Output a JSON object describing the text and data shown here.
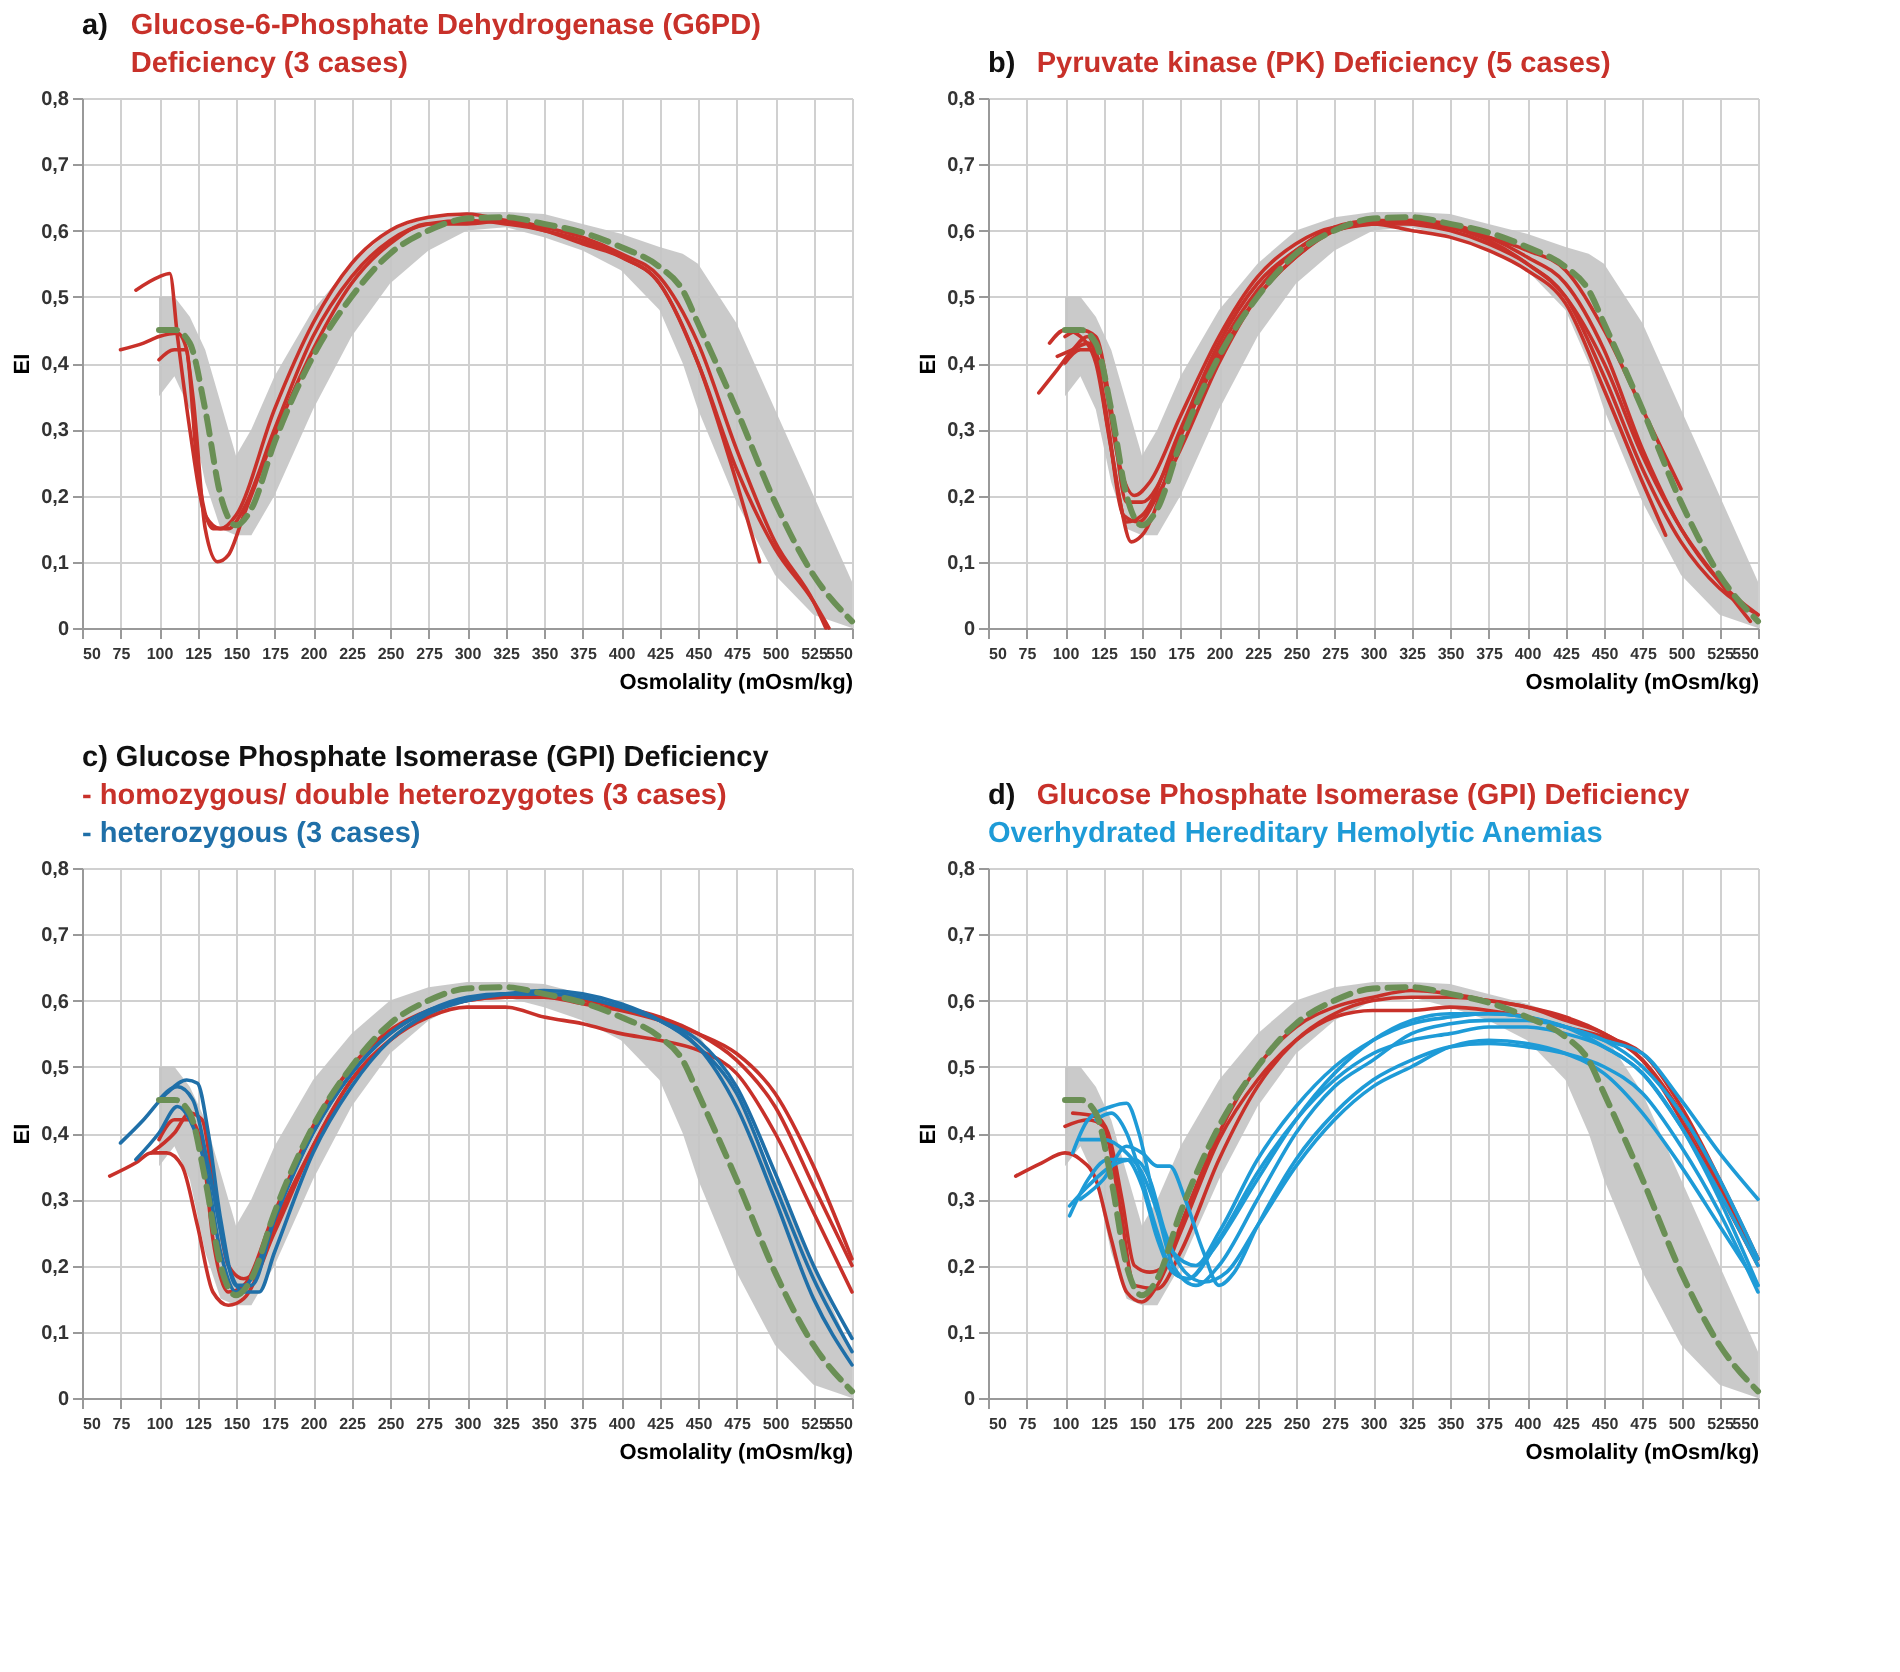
{
  "chart_data": [
    {
      "type": "line",
      "title": "a)",
      "xlabel": "Osmolality (mOsm/kg)",
      "ylabel": "EI",
      "xlim": [
        50,
        550
      ],
      "xticks": [
        50,
        75,
        100,
        125,
        150,
        175,
        200,
        225,
        250,
        275,
        300,
        325,
        350,
        375,
        400,
        425,
        450,
        475,
        500,
        525,
        550
      ],
      "ylim": [
        0,
        0.8
      ],
      "yticks": [
        {
          "value": 0,
          "label": "0"
        },
        {
          "value": 0.1,
          "label": "0,1"
        },
        {
          "value": 0.2,
          "label": "0,2"
        },
        {
          "value": 0.3,
          "label": "0,3"
        },
        {
          "value": 0.4,
          "label": "0,4"
        },
        {
          "value": 0.5,
          "label": "0,5"
        },
        {
          "value": 0.6,
          "label": "0,6"
        },
        {
          "value": 0.7,
          "label": "0,7"
        },
        {
          "value": 0.8,
          "label": "0,8"
        }
      ],
      "grid": true,
      "legend": "top",
      "series": [
        {
          "color": "#6a8f55",
          "line_style": "dashed",
          "x": [
            100,
            110,
            120,
            130,
            140,
            150,
            160,
            175,
            200,
            225,
            250,
            275,
            300,
            325,
            350,
            375,
            400,
            425,
            440,
            450,
            475,
            500,
            525,
            550
          ],
          "values": [
            0.45,
            0.45,
            0.43,
            0.33,
            0.2,
            0.155,
            0.18,
            0.28,
            0.41,
            0.5,
            0.565,
            0.6,
            0.618,
            0.62,
            0.61,
            0.597,
            0.575,
            0.545,
            0.51,
            0.46,
            0.33,
            0.19,
            0.08,
            0.01
          ],
          "lower": [
            0.35,
            0.38,
            0.33,
            0.22,
            0.15,
            0.14,
            0.14,
            0.2,
            0.33,
            0.44,
            0.52,
            0.57,
            0.6,
            0.605,
            0.59,
            0.57,
            0.54,
            0.48,
            0.4,
            0.33,
            0.19,
            0.08,
            0.02,
            0.0
          ],
          "upper": [
            0.5,
            0.5,
            0.47,
            0.42,
            0.34,
            0.26,
            0.3,
            0.38,
            0.48,
            0.55,
            0.6,
            0.62,
            0.628,
            0.628,
            0.625,
            0.61,
            0.595,
            0.575,
            0.565,
            0.55,
            0.46,
            0.33,
            0.2,
            0.07
          ]
        },
        {
          "name": "Glucose-6-Phosphate Dehydrogenase (G6PD) Deficiency (3 cases)",
          "color": "#c8312a",
          "x": [
            85,
            100,
            107,
            112,
            120,
            130,
            140,
            150,
            175,
            200,
            225,
            250,
            275,
            300,
            325,
            350,
            375,
            400,
            425,
            450,
            475,
            490
          ],
          "values": [
            0.51,
            0.53,
            0.535,
            0.44,
            0.3,
            0.17,
            0.15,
            0.17,
            0.33,
            0.46,
            0.55,
            0.6,
            0.62,
            0.625,
            0.615,
            0.6,
            0.585,
            0.56,
            0.52,
            0.4,
            0.22,
            0.1
          ]
        },
        {
          "color": "#c8312a",
          "x": [
            75,
            90,
            100,
            112,
            118,
            125,
            135,
            145,
            155,
            175,
            200,
            225,
            250,
            275,
            300,
            325,
            350,
            375,
            400,
            425,
            450,
            475,
            500,
            525,
            535
          ],
          "values": [
            0.42,
            0.43,
            0.44,
            0.445,
            0.42,
            0.24,
            0.15,
            0.15,
            0.18,
            0.3,
            0.44,
            0.53,
            0.585,
            0.61,
            0.615,
            0.61,
            0.6,
            0.58,
            0.56,
            0.52,
            0.4,
            0.24,
            0.12,
            0.04,
            0.0
          ]
        },
        {
          "color": "#c8312a",
          "x": [
            100,
            110,
            117,
            122,
            130,
            138,
            145,
            155,
            175,
            200,
            225,
            250,
            275,
            300,
            325,
            350,
            375,
            400,
            425,
            450,
            475,
            500,
            525,
            533
          ],
          "values": [
            0.405,
            0.42,
            0.42,
            0.35,
            0.15,
            0.1,
            0.11,
            0.17,
            0.29,
            0.42,
            0.52,
            0.58,
            0.61,
            0.61,
            0.615,
            0.605,
            0.59,
            0.565,
            0.53,
            0.43,
            0.27,
            0.13,
            0.04,
            0.0
          ]
        }
      ]
    },
    {
      "type": "line",
      "title": "b)",
      "xlabel": "Osmolality (mOsm/kg)",
      "ylabel": "EI",
      "xlim": [
        50,
        550
      ],
      "xticks": [
        50,
        75,
        100,
        125,
        150,
        175,
        200,
        225,
        250,
        275,
        300,
        325,
        350,
        375,
        400,
        425,
        450,
        475,
        500,
        525,
        550
      ],
      "ylim": [
        0,
        0.8
      ],
      "yticks": [
        {
          "value": 0,
          "label": "0"
        },
        {
          "value": 0.1,
          "label": "0,1"
        },
        {
          "value": 0.2,
          "label": "0,2"
        },
        {
          "value": 0.3,
          "label": "0,3"
        },
        {
          "value": 0.4,
          "label": "0,4"
        },
        {
          "value": 0.5,
          "label": "0,5"
        },
        {
          "value": 0.6,
          "label": "0,6"
        },
        {
          "value": 0.7,
          "label": "0,7"
        },
        {
          "value": 0.8,
          "label": "0,8"
        }
      ],
      "grid": true,
      "legend": "top",
      "series": [
        {
          "color": "#6a8f55",
          "line_style": "dashed",
          "x": [
            100,
            110,
            120,
            130,
            140,
            150,
            160,
            175,
            200,
            225,
            250,
            275,
            300,
            325,
            350,
            375,
            400,
            425,
            440,
            450,
            475,
            500,
            525,
            550
          ],
          "values": [
            0.45,
            0.45,
            0.43,
            0.33,
            0.2,
            0.155,
            0.18,
            0.28,
            0.41,
            0.5,
            0.565,
            0.6,
            0.618,
            0.62,
            0.61,
            0.597,
            0.575,
            0.545,
            0.51,
            0.46,
            0.33,
            0.19,
            0.08,
            0.01
          ],
          "lower": [
            0.35,
            0.38,
            0.33,
            0.22,
            0.15,
            0.14,
            0.14,
            0.2,
            0.33,
            0.44,
            0.52,
            0.57,
            0.6,
            0.605,
            0.59,
            0.57,
            0.54,
            0.48,
            0.4,
            0.33,
            0.19,
            0.08,
            0.02,
            0.0
          ],
          "upper": [
            0.5,
            0.5,
            0.47,
            0.42,
            0.34,
            0.26,
            0.3,
            0.38,
            0.48,
            0.55,
            0.6,
            0.62,
            0.628,
            0.628,
            0.625,
            0.61,
            0.595,
            0.575,
            0.565,
            0.55,
            0.46,
            0.33,
            0.2,
            0.07
          ]
        },
        {
          "name": "Pyruvate kinase (PK) Deficiency (5 cases)",
          "color": "#c8312a",
          "x": [
            83,
            95,
            105,
            115,
            125,
            135,
            143,
            150,
            175,
            200,
            225,
            250,
            275,
            300,
            325,
            350,
            375,
            400,
            425,
            450,
            475,
            500,
            525,
            550
          ],
          "values": [
            0.355,
            0.39,
            0.42,
            0.44,
            0.35,
            0.2,
            0.13,
            0.14,
            0.29,
            0.41,
            0.5,
            0.56,
            0.6,
            0.615,
            0.61,
            0.6,
            0.58,
            0.55,
            0.5,
            0.38,
            0.24,
            0.13,
            0.06,
            0.02
          ]
        },
        {
          "color": "#c8312a",
          "x": [
            90,
            100,
            110,
            120,
            130,
            140,
            150,
            175,
            200,
            225,
            250,
            275,
            300,
            325,
            350,
            375,
            400,
            425,
            450,
            475,
            500,
            525,
            550
          ],
          "values": [
            0.43,
            0.45,
            0.44,
            0.4,
            0.27,
            0.16,
            0.17,
            0.3,
            0.43,
            0.52,
            0.57,
            0.605,
            0.615,
            0.615,
            0.61,
            0.59,
            0.56,
            0.52,
            0.42,
            0.27,
            0.15,
            0.07,
            0.02
          ]
        },
        {
          "color": "#c8312a",
          "x": [
            95,
            105,
            115,
            125,
            135,
            145,
            155,
            175,
            200,
            225,
            250,
            275,
            300,
            325,
            350,
            375,
            400,
            425,
            450,
            475,
            490
          ],
          "values": [
            0.41,
            0.42,
            0.43,
            0.38,
            0.25,
            0.2,
            0.22,
            0.32,
            0.44,
            0.53,
            0.58,
            0.605,
            0.61,
            0.6,
            0.59,
            0.57,
            0.54,
            0.49,
            0.36,
            0.22,
            0.14
          ]
        },
        {
          "color": "#c8312a",
          "x": [
            100,
            110,
            120,
            130,
            140,
            150,
            175,
            200,
            225,
            250,
            275,
            300,
            325,
            350,
            375,
            400,
            425,
            450,
            475,
            500
          ],
          "values": [
            0.44,
            0.45,
            0.44,
            0.33,
            0.19,
            0.19,
            0.29,
            0.42,
            0.51,
            0.57,
            0.6,
            0.61,
            0.61,
            0.605,
            0.59,
            0.57,
            0.54,
            0.45,
            0.33,
            0.21
          ]
        },
        {
          "color": "#c8312a",
          "x": [
            100,
            110,
            118,
            128,
            138,
            148,
            160,
            175,
            200,
            225,
            250,
            275,
            300,
            325,
            350,
            375,
            400,
            425,
            450,
            475,
            500,
            525,
            545
          ],
          "values": [
            0.4,
            0.42,
            0.42,
            0.3,
            0.17,
            0.16,
            0.2,
            0.27,
            0.4,
            0.5,
            0.56,
            0.6,
            0.61,
            0.615,
            0.605,
            0.585,
            0.55,
            0.5,
            0.4,
            0.26,
            0.15,
            0.07,
            0.01
          ]
        }
      ]
    },
    {
      "type": "line",
      "title": "c) Glucose Phosphate Isomerase (GPI) Deficiency",
      "xlabel": "Osmolality (mOsm/kg)",
      "ylabel": "EI",
      "xlim": [
        50,
        550
      ],
      "xticks": [
        50,
        75,
        100,
        125,
        150,
        175,
        200,
        225,
        250,
        275,
        300,
        325,
        350,
        375,
        400,
        425,
        450,
        475,
        500,
        525,
        550
      ],
      "ylim": [
        0,
        0.8
      ],
      "yticks": [
        {
          "value": 0,
          "label": "0"
        },
        {
          "value": 0.1,
          "label": "0,1"
        },
        {
          "value": 0.2,
          "label": "0,2"
        },
        {
          "value": 0.3,
          "label": "0,3"
        },
        {
          "value": 0.4,
          "label": "0,4"
        },
        {
          "value": 0.5,
          "label": "0,5"
        },
        {
          "value": 0.6,
          "label": "0,6"
        },
        {
          "value": 0.7,
          "label": "0,7"
        },
        {
          "value": 0.8,
          "label": "0,8"
        }
      ],
      "grid": true,
      "legend": "top",
      "series": [
        {
          "color": "#6a8f55",
          "line_style": "dashed",
          "x": [
            100,
            110,
            120,
            130,
            140,
            150,
            160,
            175,
            200,
            225,
            250,
            275,
            300,
            325,
            350,
            375,
            400,
            425,
            440,
            450,
            475,
            500,
            525,
            550
          ],
          "values": [
            0.45,
            0.45,
            0.43,
            0.33,
            0.2,
            0.155,
            0.18,
            0.28,
            0.41,
            0.5,
            0.565,
            0.6,
            0.618,
            0.62,
            0.61,
            0.597,
            0.575,
            0.545,
            0.51,
            0.46,
            0.33,
            0.19,
            0.08,
            0.01
          ],
          "lower": [
            0.35,
            0.38,
            0.33,
            0.22,
            0.15,
            0.14,
            0.14,
            0.2,
            0.33,
            0.44,
            0.52,
            0.57,
            0.6,
            0.605,
            0.59,
            0.57,
            0.54,
            0.48,
            0.4,
            0.33,
            0.19,
            0.08,
            0.02,
            0.0
          ],
          "upper": [
            0.5,
            0.5,
            0.47,
            0.42,
            0.34,
            0.26,
            0.3,
            0.38,
            0.48,
            0.55,
            0.6,
            0.62,
            0.628,
            0.628,
            0.625,
            0.61,
            0.595,
            0.575,
            0.565,
            0.55,
            0.46,
            0.33,
            0.2,
            0.07
          ]
        },
        {
          "name": "- homozygous/ double heterozygotes (3 cases)",
          "color": "#c8312a",
          "x": [
            68,
            85,
            95,
            105,
            115,
            125,
            135,
            145,
            155,
            175,
            200,
            225,
            250,
            275,
            300,
            325,
            350,
            375,
            400,
            425,
            450,
            475,
            500,
            525,
            550
          ],
          "values": [
            0.335,
            0.355,
            0.37,
            0.37,
            0.35,
            0.26,
            0.16,
            0.14,
            0.15,
            0.25,
            0.38,
            0.48,
            0.54,
            0.575,
            0.59,
            0.59,
            0.575,
            0.565,
            0.55,
            0.54,
            0.525,
            0.49,
            0.4,
            0.28,
            0.16
          ]
        },
        {
          "color": "#c8312a",
          "x": [
            95,
            110,
            120,
            128,
            135,
            145,
            155,
            165,
            175,
            200,
            225,
            250,
            275,
            300,
            325,
            350,
            375,
            400,
            425,
            450,
            475,
            500,
            525,
            550
          ],
          "values": [
            0.37,
            0.4,
            0.43,
            0.42,
            0.33,
            0.2,
            0.18,
            0.2,
            0.26,
            0.38,
            0.48,
            0.54,
            0.58,
            0.6,
            0.605,
            0.605,
            0.595,
            0.585,
            0.57,
            0.55,
            0.52,
            0.46,
            0.35,
            0.21
          ]
        },
        {
          "color": "#c8312a",
          "x": [
            100,
            110,
            120,
            128,
            135,
            145,
            155,
            175,
            200,
            225,
            250,
            275,
            300,
            325,
            350,
            375,
            400,
            425,
            450,
            475,
            500,
            525,
            550
          ],
          "values": [
            0.39,
            0.42,
            0.42,
            0.38,
            0.24,
            0.16,
            0.17,
            0.28,
            0.41,
            0.5,
            0.555,
            0.585,
            0.6,
            0.605,
            0.605,
            0.6,
            0.59,
            0.575,
            0.55,
            0.51,
            0.44,
            0.32,
            0.2
          ]
        },
        {
          "name": "- heterozygous (3 cases)",
          "color": "#1f6fa8",
          "x": [
            75,
            90,
            105,
            118,
            125,
            132,
            140,
            150,
            160,
            175,
            200,
            225,
            250,
            275,
            300,
            325,
            350,
            375,
            400,
            425,
            450,
            475,
            500,
            525,
            550
          ],
          "values": [
            0.385,
            0.42,
            0.46,
            0.48,
            0.475,
            0.4,
            0.27,
            0.17,
            0.17,
            0.27,
            0.4,
            0.49,
            0.55,
            0.585,
            0.605,
            0.61,
            0.61,
            0.605,
            0.59,
            0.57,
            0.53,
            0.46,
            0.32,
            0.18,
            0.07
          ]
        },
        {
          "color": "#1f6fa8",
          "x": [
            85,
            100,
            112,
            120,
            130,
            140,
            150,
            160,
            175,
            200,
            225,
            250,
            275,
            300,
            325,
            350,
            375,
            400,
            425,
            450,
            475,
            500,
            525,
            550
          ],
          "values": [
            0.36,
            0.4,
            0.44,
            0.42,
            0.35,
            0.22,
            0.16,
            0.18,
            0.27,
            0.4,
            0.49,
            0.55,
            0.585,
            0.6,
            0.61,
            0.61,
            0.605,
            0.59,
            0.57,
            0.54,
            0.47,
            0.34,
            0.2,
            0.09
          ]
        },
        {
          "color": "#1f6fa8",
          "x": [
            100,
            112,
            122,
            132,
            145,
            155,
            165,
            175,
            200,
            225,
            250,
            275,
            300,
            325,
            350,
            375,
            400,
            425,
            450,
            475,
            500,
            525,
            550
          ],
          "values": [
            0.45,
            0.47,
            0.45,
            0.35,
            0.2,
            0.16,
            0.16,
            0.22,
            0.37,
            0.47,
            0.54,
            0.58,
            0.6,
            0.61,
            0.615,
            0.61,
            0.595,
            0.57,
            0.53,
            0.44,
            0.3,
            0.15,
            0.05
          ]
        }
      ]
    },
    {
      "type": "line",
      "title": "d)",
      "xlabel": "Osmolality (mOsm/kg)",
      "ylabel": "EI",
      "xlim": [
        50,
        550
      ],
      "xticks": [
        50,
        75,
        100,
        125,
        150,
        175,
        200,
        225,
        250,
        275,
        300,
        325,
        350,
        375,
        400,
        425,
        450,
        475,
        500,
        525,
        550
      ],
      "ylim": [
        0,
        0.8
      ],
      "yticks": [
        {
          "value": 0,
          "label": "0"
        },
        {
          "value": 0.1,
          "label": "0,1"
        },
        {
          "value": 0.2,
          "label": "0,2"
        },
        {
          "value": 0.3,
          "label": "0,3"
        },
        {
          "value": 0.4,
          "label": "0,4"
        },
        {
          "value": 0.5,
          "label": "0,5"
        },
        {
          "value": 0.6,
          "label": "0,6"
        },
        {
          "value": 0.7,
          "label": "0,7"
        },
        {
          "value": 0.8,
          "label": "0,8"
        }
      ],
      "grid": true,
      "legend": "top",
      "series": [
        {
          "color": "#6a8f55",
          "line_style": "dashed",
          "x": [
            100,
            110,
            120,
            130,
            140,
            150,
            160,
            175,
            200,
            225,
            250,
            275,
            300,
            325,
            350,
            375,
            400,
            425,
            440,
            450,
            475,
            500,
            525,
            550
          ],
          "values": [
            0.45,
            0.45,
            0.43,
            0.33,
            0.2,
            0.155,
            0.18,
            0.28,
            0.41,
            0.5,
            0.565,
            0.6,
            0.618,
            0.62,
            0.61,
            0.597,
            0.575,
            0.545,
            0.51,
            0.46,
            0.33,
            0.19,
            0.08,
            0.01
          ],
          "lower": [
            0.35,
            0.38,
            0.33,
            0.22,
            0.15,
            0.14,
            0.14,
            0.2,
            0.33,
            0.44,
            0.52,
            0.57,
            0.6,
            0.605,
            0.59,
            0.57,
            0.54,
            0.48,
            0.4,
            0.33,
            0.19,
            0.08,
            0.02,
            0.0
          ],
          "upper": [
            0.5,
            0.5,
            0.47,
            0.42,
            0.34,
            0.26,
            0.3,
            0.38,
            0.48,
            0.55,
            0.6,
            0.62,
            0.628,
            0.628,
            0.625,
            0.61,
            0.595,
            0.575,
            0.565,
            0.55,
            0.46,
            0.33,
            0.2,
            0.07
          ]
        },
        {
          "name": "Glucose Phosphate Isomerase (GPI) Deficiency",
          "color": "#c8312a",
          "x": [
            68,
            85,
            100,
            110,
            120,
            130,
            140,
            150,
            160,
            175,
            200,
            225,
            250,
            275,
            300,
            325,
            350,
            375,
            400,
            425,
            450,
            475,
            500,
            525,
            550
          ],
          "values": [
            0.335,
            0.355,
            0.37,
            0.36,
            0.33,
            0.24,
            0.16,
            0.145,
            0.17,
            0.25,
            0.39,
            0.48,
            0.54,
            0.575,
            0.585,
            0.585,
            0.59,
            0.585,
            0.575,
            0.56,
            0.545,
            0.52,
            0.44,
            0.33,
            0.21
          ]
        },
        {
          "color": "#c8312a",
          "x": [
            105,
            120,
            128,
            137,
            145,
            155,
            165,
            175,
            200,
            225,
            250,
            275,
            300,
            325,
            350,
            375,
            400,
            425,
            450,
            475,
            500,
            525,
            550
          ],
          "values": [
            0.43,
            0.425,
            0.4,
            0.3,
            0.2,
            0.19,
            0.2,
            0.26,
            0.4,
            0.5,
            0.56,
            0.59,
            0.605,
            0.615,
            0.61,
            0.6,
            0.59,
            0.575,
            0.55,
            0.51,
            0.42,
            0.31,
            0.2
          ]
        },
        {
          "color": "#c8312a",
          "x": [
            100,
            115,
            125,
            135,
            145,
            160,
            175,
            200,
            225,
            250,
            275,
            300,
            325,
            350,
            375,
            400,
            425,
            450,
            475,
            500,
            525,
            550
          ],
          "values": [
            0.41,
            0.42,
            0.41,
            0.3,
            0.17,
            0.165,
            0.22,
            0.36,
            0.47,
            0.54,
            0.58,
            0.6,
            0.605,
            0.605,
            0.6,
            0.59,
            0.57,
            0.55,
            0.51,
            0.43,
            0.32,
            0.21
          ]
        },
        {
          "name": "Overhydrated Hereditary Hemolytic Anemias",
          "color": "#1e9bd7",
          "x": [
            103,
            115,
            128,
            140,
            150,
            160,
            170,
            180,
            200,
            225,
            250,
            275,
            300,
            325,
            350,
            375,
            400,
            425,
            450,
            475,
            500,
            525,
            550
          ],
          "values": [
            0.275,
            0.33,
            0.36,
            0.36,
            0.32,
            0.24,
            0.19,
            0.18,
            0.24,
            0.34,
            0.42,
            0.48,
            0.52,
            0.54,
            0.55,
            0.56,
            0.56,
            0.55,
            0.53,
            0.49,
            0.41,
            0.3,
            0.17
          ]
        },
        {
          "color": "#1e9bd7",
          "x": [
            103,
            115,
            130,
            145,
            155,
            165,
            178,
            190,
            205,
            225,
            250,
            275,
            300,
            325,
            350,
            375,
            400,
            425,
            450,
            475,
            500,
            525,
            550
          ],
          "values": [
            0.29,
            0.32,
            0.35,
            0.36,
            0.33,
            0.25,
            0.19,
            0.175,
            0.19,
            0.26,
            0.35,
            0.42,
            0.47,
            0.5,
            0.53,
            0.54,
            0.535,
            0.52,
            0.49,
            0.43,
            0.35,
            0.26,
            0.17
          ]
        },
        {
          "color": "#1e9bd7",
          "x": [
            105,
            115,
            130,
            140,
            148,
            158,
            170,
            185,
            200,
            225,
            250,
            275,
            300,
            325,
            350,
            375,
            400,
            425,
            450,
            475,
            500,
            525,
            550
          ],
          "values": [
            0.37,
            0.42,
            0.44,
            0.445,
            0.4,
            0.3,
            0.22,
            0.2,
            0.25,
            0.36,
            0.44,
            0.5,
            0.54,
            0.565,
            0.575,
            0.58,
            0.575,
            0.56,
            0.54,
            0.5,
            0.43,
            0.33,
            0.21
          ]
        },
        {
          "color": "#1e9bd7",
          "x": [
            110,
            125,
            140,
            150,
            160,
            170,
            185,
            200,
            225,
            250,
            275,
            300,
            325,
            350,
            375,
            400,
            425,
            450,
            475,
            500,
            525,
            550
          ],
          "values": [
            0.39,
            0.39,
            0.37,
            0.34,
            0.28,
            0.2,
            0.17,
            0.2,
            0.3,
            0.4,
            0.47,
            0.51,
            0.55,
            0.565,
            0.57,
            0.57,
            0.56,
            0.54,
            0.52,
            0.45,
            0.37,
            0.3
          ]
        },
        {
          "color": "#1e9bd7",
          "x": [
            110,
            125,
            140,
            150,
            160,
            168,
            178,
            190,
            200,
            210,
            225,
            250,
            275,
            300,
            325,
            350,
            375,
            400,
            425,
            450,
            475,
            500,
            525,
            550
          ],
          "values": [
            0.3,
            0.33,
            0.38,
            0.37,
            0.35,
            0.35,
            0.3,
            0.22,
            0.17,
            0.19,
            0.26,
            0.36,
            0.43,
            0.48,
            0.51,
            0.53,
            0.535,
            0.53,
            0.52,
            0.5,
            0.46,
            0.38,
            0.28,
            0.16
          ]
        },
        {
          "color": "#1e9bd7",
          "x": [
            120,
            130,
            140,
            150,
            160,
            170,
            180,
            195,
            225,
            250,
            275,
            300,
            325,
            350,
            375,
            400,
            425,
            450,
            475,
            500,
            525,
            550
          ],
          "values": [
            0.42,
            0.43,
            0.4,
            0.33,
            0.25,
            0.19,
            0.18,
            0.22,
            0.33,
            0.42,
            0.49,
            0.54,
            0.57,
            0.58,
            0.58,
            0.575,
            0.56,
            0.53,
            0.49,
            0.41,
            0.31,
            0.2
          ]
        }
      ]
    }
  ]
}
